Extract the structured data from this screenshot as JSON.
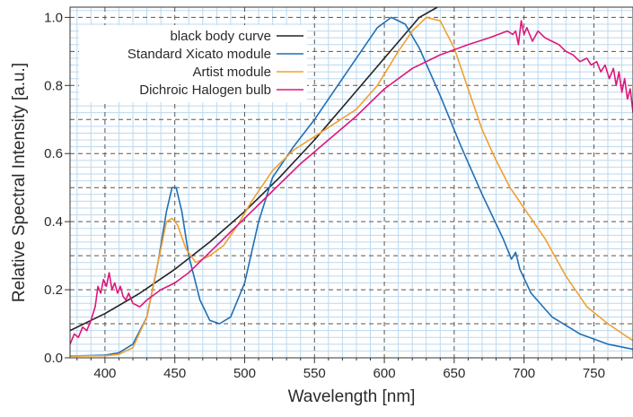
{
  "chart_data": {
    "type": "line",
    "title": "",
    "xlabel": "Wavelength [nm]",
    "ylabel": "Relative Spectral Intensity [a.u.]",
    "xlim": [
      375,
      778
    ],
    "ylim": [
      0,
      1.03
    ],
    "xticks": [
      400,
      450,
      500,
      550,
      600,
      650,
      700,
      750
    ],
    "yticks": [
      0.0,
      0.2,
      0.4,
      0.6,
      0.8,
      1.0
    ],
    "ytick_labels": [
      "0.0",
      "0.2",
      "0.4",
      "0.6",
      "0.8",
      "1.0"
    ],
    "grid": {
      "major": "dashed dark gray at every 0.1 on y and every 50 nm on x",
      "minor": "light blue solid lines at every 0.02 on y and every 10 nm on x"
    },
    "legend": {
      "placement": "top-left"
    },
    "series": [
      {
        "name": "black body curve",
        "color": "#222222",
        "points": [
          [
            375,
            0.08
          ],
          [
            400,
            0.13
          ],
          [
            425,
            0.19
          ],
          [
            450,
            0.26
          ],
          [
            475,
            0.34
          ],
          [
            500,
            0.43
          ],
          [
            525,
            0.53
          ],
          [
            550,
            0.64
          ],
          [
            575,
            0.76
          ],
          [
            600,
            0.88
          ],
          [
            625,
            1.0
          ],
          [
            638,
            1.03
          ]
        ]
      },
      {
        "name": "Standard Xicato module",
        "color": "#1f6fb5",
        "points": [
          [
            375,
            0.005
          ],
          [
            400,
            0.008
          ],
          [
            410,
            0.015
          ],
          [
            420,
            0.04
          ],
          [
            430,
            0.12
          ],
          [
            438,
            0.28
          ],
          [
            444,
            0.43
          ],
          [
            448,
            0.5
          ],
          [
            451,
            0.5
          ],
          [
            455,
            0.43
          ],
          [
            460,
            0.3
          ],
          [
            468,
            0.17
          ],
          [
            475,
            0.11
          ],
          [
            482,
            0.1
          ],
          [
            490,
            0.12
          ],
          [
            500,
            0.22
          ],
          [
            510,
            0.4
          ],
          [
            520,
            0.53
          ],
          [
            535,
            0.62
          ],
          [
            550,
            0.7
          ],
          [
            565,
            0.79
          ],
          [
            580,
            0.88
          ],
          [
            595,
            0.97
          ],
          [
            605,
            1.0
          ],
          [
            615,
            0.98
          ],
          [
            625,
            0.91
          ],
          [
            640,
            0.77
          ],
          [
            655,
            0.62
          ],
          [
            670,
            0.48
          ],
          [
            685,
            0.35
          ],
          [
            691,
            0.29
          ],
          [
            694,
            0.31
          ],
          [
            697,
            0.26
          ],
          [
            705,
            0.19
          ],
          [
            720,
            0.12
          ],
          [
            740,
            0.07
          ],
          [
            760,
            0.04
          ],
          [
            778,
            0.025
          ]
        ]
      },
      {
        "name": "Artist module",
        "color": "#f0a030",
        "points": [
          [
            375,
            0.005
          ],
          [
            400,
            0.006
          ],
          [
            410,
            0.01
          ],
          [
            420,
            0.03
          ],
          [
            430,
            0.12
          ],
          [
            438,
            0.28
          ],
          [
            444,
            0.4
          ],
          [
            448,
            0.41
          ],
          [
            452,
            0.39
          ],
          [
            458,
            0.32
          ],
          [
            465,
            0.28
          ],
          [
            475,
            0.3
          ],
          [
            485,
            0.33
          ],
          [
            495,
            0.39
          ],
          [
            505,
            0.46
          ],
          [
            520,
            0.55
          ],
          [
            535,
            0.61
          ],
          [
            550,
            0.65
          ],
          [
            565,
            0.69
          ],
          [
            580,
            0.73
          ],
          [
            595,
            0.8
          ],
          [
            610,
            0.9
          ],
          [
            620,
            0.96
          ],
          [
            630,
            1.0
          ],
          [
            640,
            0.99
          ],
          [
            650,
            0.91
          ],
          [
            660,
            0.79
          ],
          [
            670,
            0.67
          ],
          [
            680,
            0.58
          ],
          [
            690,
            0.5
          ],
          [
            700,
            0.44
          ],
          [
            715,
            0.35
          ],
          [
            730,
            0.24
          ],
          [
            745,
            0.15
          ],
          [
            760,
            0.1
          ],
          [
            778,
            0.05
          ]
        ]
      },
      {
        "name": "Dichroic Halogen bulb",
        "color": "#e0157b",
        "points": [
          [
            375,
            0.04
          ],
          [
            378,
            0.07
          ],
          [
            381,
            0.06
          ],
          [
            384,
            0.09
          ],
          [
            387,
            0.08
          ],
          [
            390,
            0.11
          ],
          [
            393,
            0.15
          ],
          [
            395,
            0.21
          ],
          [
            397,
            0.19
          ],
          [
            399,
            0.23
          ],
          [
            401,
            0.21
          ],
          [
            403,
            0.25
          ],
          [
            405,
            0.2
          ],
          [
            407,
            0.22
          ],
          [
            409,
            0.19
          ],
          [
            411,
            0.21
          ],
          [
            413,
            0.18
          ],
          [
            415,
            0.17
          ],
          [
            417,
            0.19
          ],
          [
            420,
            0.16
          ],
          [
            425,
            0.15
          ],
          [
            430,
            0.17
          ],
          [
            440,
            0.2
          ],
          [
            450,
            0.22
          ],
          [
            460,
            0.25
          ],
          [
            470,
            0.29
          ],
          [
            480,
            0.33
          ],
          [
            490,
            0.37
          ],
          [
            500,
            0.41
          ],
          [
            520,
            0.49
          ],
          [
            540,
            0.57
          ],
          [
            560,
            0.64
          ],
          [
            580,
            0.71
          ],
          [
            600,
            0.79
          ],
          [
            620,
            0.85
          ],
          [
            640,
            0.89
          ],
          [
            660,
            0.92
          ],
          [
            675,
            0.94
          ],
          [
            688,
            0.96
          ],
          [
            692,
            0.95
          ],
          [
            694,
            0.96
          ],
          [
            696,
            0.92
          ],
          [
            698,
            0.99
          ],
          [
            700,
            0.95
          ],
          [
            702,
            0.97
          ],
          [
            706,
            0.93
          ],
          [
            710,
            0.96
          ],
          [
            715,
            0.94
          ],
          [
            720,
            0.93
          ],
          [
            725,
            0.92
          ],
          [
            730,
            0.9
          ],
          [
            735,
            0.89
          ],
          [
            740,
            0.87
          ],
          [
            745,
            0.88
          ],
          [
            748,
            0.86
          ],
          [
            752,
            0.87
          ],
          [
            755,
            0.84
          ],
          [
            758,
            0.86
          ],
          [
            761,
            0.82
          ],
          [
            764,
            0.85
          ],
          [
            766,
            0.8
          ],
          [
            768,
            0.84
          ],
          [
            770,
            0.78
          ],
          [
            772,
            0.82
          ],
          [
            774,
            0.76
          ],
          [
            776,
            0.79
          ],
          [
            778,
            0.72
          ]
        ]
      }
    ]
  }
}
